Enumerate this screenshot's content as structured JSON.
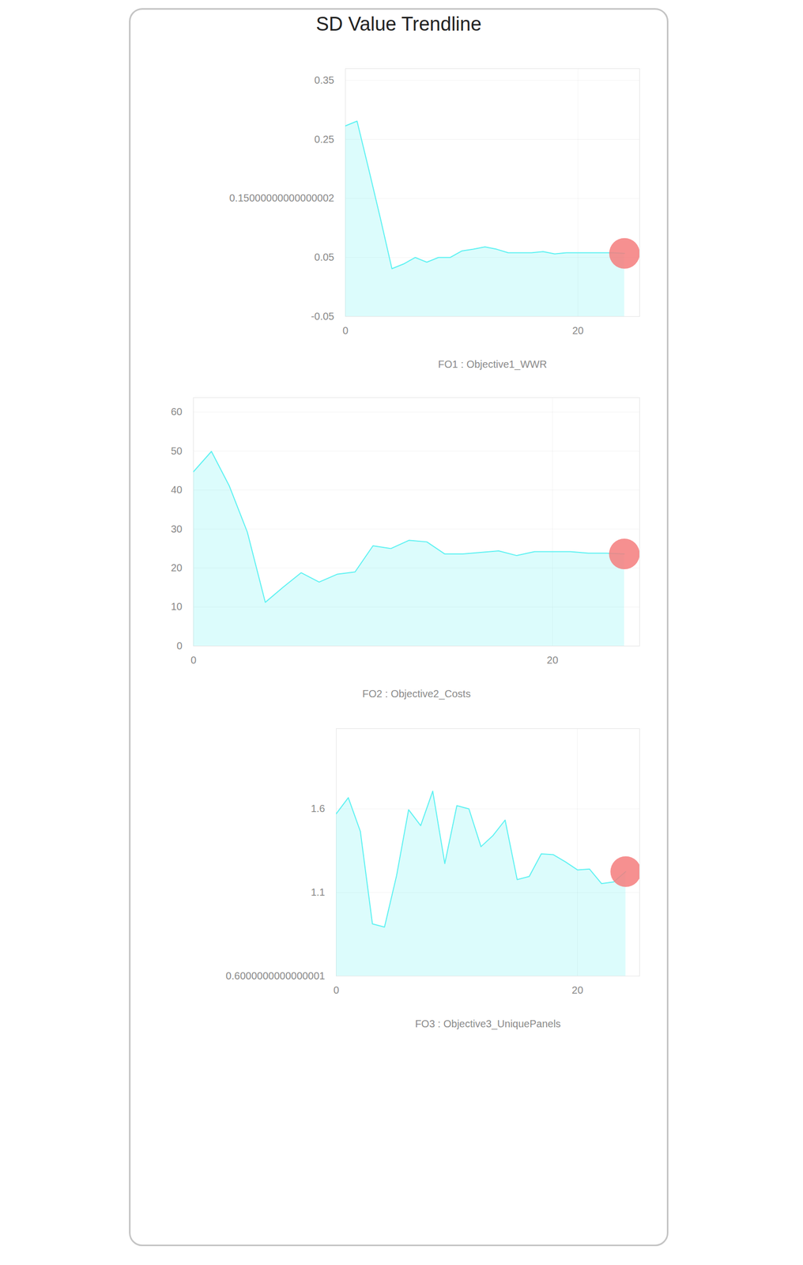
{
  "title": "SD Value Trendline",
  "chart_data": [
    {
      "type": "area",
      "x_label": "FO1 : Objective1_WWR",
      "x": [
        0,
        1,
        2,
        3,
        4,
        5,
        6,
        7,
        8,
        9,
        10,
        11,
        12,
        13,
        14,
        15,
        16,
        17,
        18,
        19,
        20,
        21,
        22,
        23,
        24
      ],
      "values": [
        0.273,
        0.281,
        0.2,
        0.117,
        0.031,
        0.039,
        0.05,
        0.042,
        0.05,
        0.05,
        0.061,
        0.064,
        0.068,
        0.064,
        0.058,
        0.058,
        0.058,
        0.06,
        0.056,
        0.058,
        0.058,
        0.058,
        0.058,
        0.058,
        0.057
      ],
      "color": "#5ef2f2",
      "marker": "circle",
      "xlim": [
        0,
        25.3
      ],
      "xticks": [
        0,
        20
      ],
      "ylim": [
        -0.05,
        0.37
      ],
      "yticks": [
        -0.05,
        0.05,
        0.15000000000000002,
        0.25,
        0.35
      ],
      "grid": true
    },
    {
      "type": "area",
      "x_label": "FO2 : Objective2_Costs",
      "x": [
        0,
        1,
        2,
        3,
        4,
        5,
        6,
        7,
        8,
        9,
        10,
        11,
        12,
        13,
        14,
        15,
        16,
        17,
        18,
        19,
        20,
        21,
        22,
        23,
        24
      ],
      "values": [
        44.7,
        49.9,
        41,
        29.2,
        11.2,
        15.1,
        18.8,
        16.4,
        18.4,
        19,
        25.7,
        25,
        27.1,
        26.7,
        23.6,
        23.6,
        24,
        24.4,
        23.2,
        24.2,
        24.2,
        24.2,
        23.8,
        23.8,
        23.6
      ],
      "color": "#5ef2f2",
      "marker": "circle",
      "xlim": [
        0,
        24.85
      ],
      "xticks": [
        0,
        20
      ],
      "ylim": [
        0,
        63.7
      ],
      "yticks": [
        0,
        10,
        20,
        30,
        40,
        50,
        60
      ],
      "grid": true
    },
    {
      "type": "area",
      "x_label": "FO3 : Objective3_UniquePanels",
      "x": [
        0,
        1,
        2,
        3,
        4,
        5,
        6,
        7,
        8,
        9,
        10,
        11,
        12,
        13,
        14,
        15,
        16,
        17,
        18,
        19,
        20,
        21,
        22,
        23,
        24
      ],
      "values": [
        1.571,
        1.667,
        1.465,
        0.912,
        0.893,
        1.2,
        1.595,
        1.5,
        1.706,
        1.273,
        1.619,
        1.6,
        1.374,
        1.441,
        1.533,
        1.177,
        1.196,
        1.331,
        1.326,
        1.283,
        1.235,
        1.24,
        1.153,
        1.163,
        1.225
      ],
      "color": "#5ef2f2",
      "marker": "circle",
      "xlim": [
        0,
        25.15
      ],
      "xticks": [
        0,
        20
      ],
      "ylim": [
        0.6000000000000001,
        2.08
      ],
      "yticks": [
        0.6000000000000001,
        1.1,
        1.6
      ],
      "grid": true
    }
  ]
}
